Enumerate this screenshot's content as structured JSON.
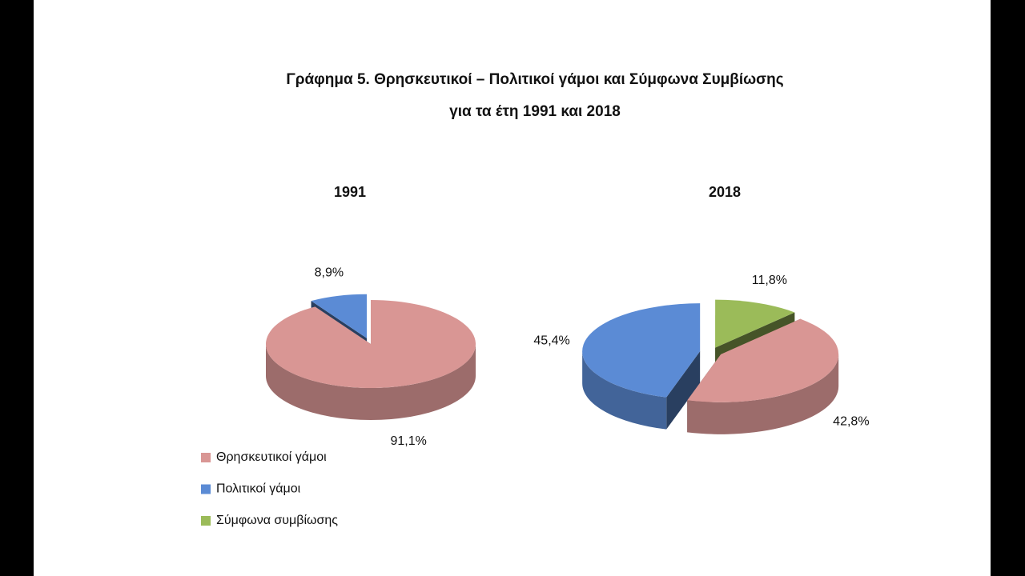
{
  "title": "Γράφημα 5. Θρησκευτικοί – Πολιτικοί γάμοι και Σύμφωνα Συμβίωσης",
  "subtitle": "για τα έτη 1991 και 2018",
  "chart_data": [
    {
      "type": "pie",
      "title": "1991",
      "categories": [
        "Θρησκευτικοί γάμοι",
        "Πολιτικοί γάμοι"
      ],
      "values": [
        91.1,
        8.9
      ],
      "value_labels": [
        "91,1%",
        "8,9%"
      ],
      "colors": [
        "#d99694",
        "#5b8bd5"
      ]
    },
    {
      "type": "pie",
      "title": "2018",
      "categories": [
        "Θρησκευτικοί γάμοι",
        "Πολιτικοί γάμοι",
        "Σύμφωνα συμβίωσης"
      ],
      "values": [
        42.8,
        45.4,
        11.8
      ],
      "value_labels": [
        "42,8%",
        "45,4%",
        "11,8%"
      ],
      "colors": [
        "#d99694",
        "#5b8bd5",
        "#9bbb59"
      ]
    }
  ]
}
